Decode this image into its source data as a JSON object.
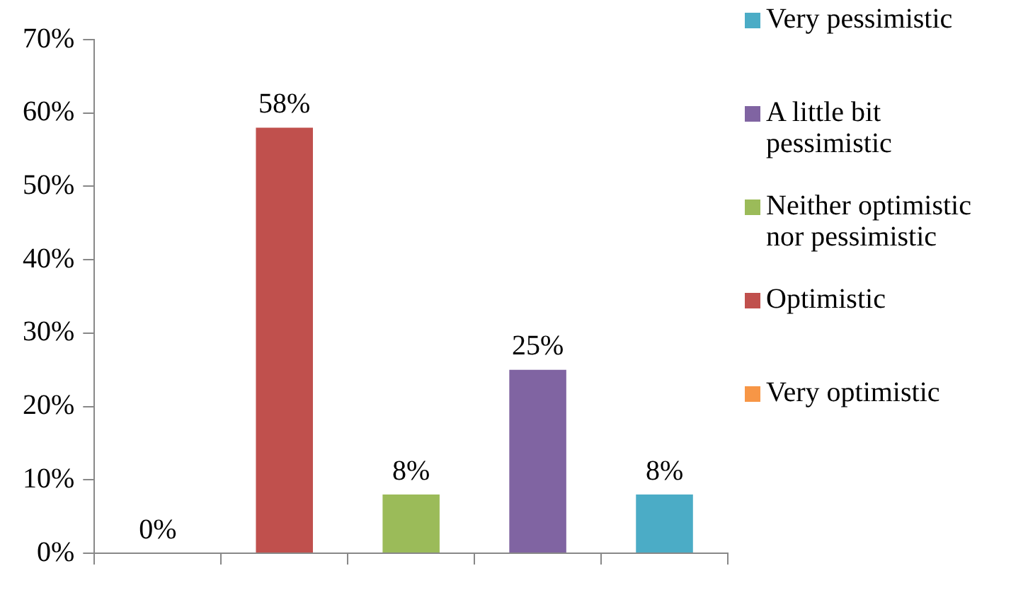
{
  "chart_data": {
    "type": "bar",
    "categories": [
      null,
      null,
      null,
      null,
      null
    ],
    "series": [
      {
        "name": "Very optimistic",
        "color": "#f79646",
        "values": [
          0,
          null,
          null,
          null,
          null
        ],
        "value_labels": [
          "0%",
          null,
          null,
          null,
          null
        ]
      },
      {
        "name": "Optimistic",
        "color": "#c0504d",
        "values": [
          null,
          58,
          null,
          null,
          null
        ],
        "value_labels": [
          null,
          "58%",
          null,
          null,
          null
        ]
      },
      {
        "name": "Neither optimistic nor pessimistic",
        "color": "#9bbb59",
        "values": [
          null,
          null,
          8,
          null,
          null
        ],
        "value_labels": [
          null,
          null,
          "8%",
          null,
          null
        ]
      },
      {
        "name": "A little bit pessimistic",
        "color": "#8064a2",
        "values": [
          null,
          null,
          null,
          25,
          null
        ],
        "value_labels": [
          null,
          null,
          null,
          "25%",
          null
        ]
      },
      {
        "name": "Very pessimistic",
        "color": "#4bacc6",
        "values": [
          null,
          null,
          null,
          null,
          8
        ],
        "value_labels": [
          null,
          null,
          null,
          null,
          "8%"
        ]
      }
    ],
    "ylim": [
      0,
      70
    ],
    "yticks": [
      {
        "value": 0,
        "label": "0%"
      },
      {
        "value": 10,
        "label": "10%"
      },
      {
        "value": 20,
        "label": "20%"
      },
      {
        "value": 30,
        "label": "30%"
      },
      {
        "value": 40,
        "label": "40%"
      },
      {
        "value": 50,
        "label": "50%"
      },
      {
        "value": 60,
        "label": "60%"
      },
      {
        "value": 70,
        "label": "70%"
      }
    ],
    "grid": false,
    "legend": "right",
    "tick_labels": "y"
  }
}
